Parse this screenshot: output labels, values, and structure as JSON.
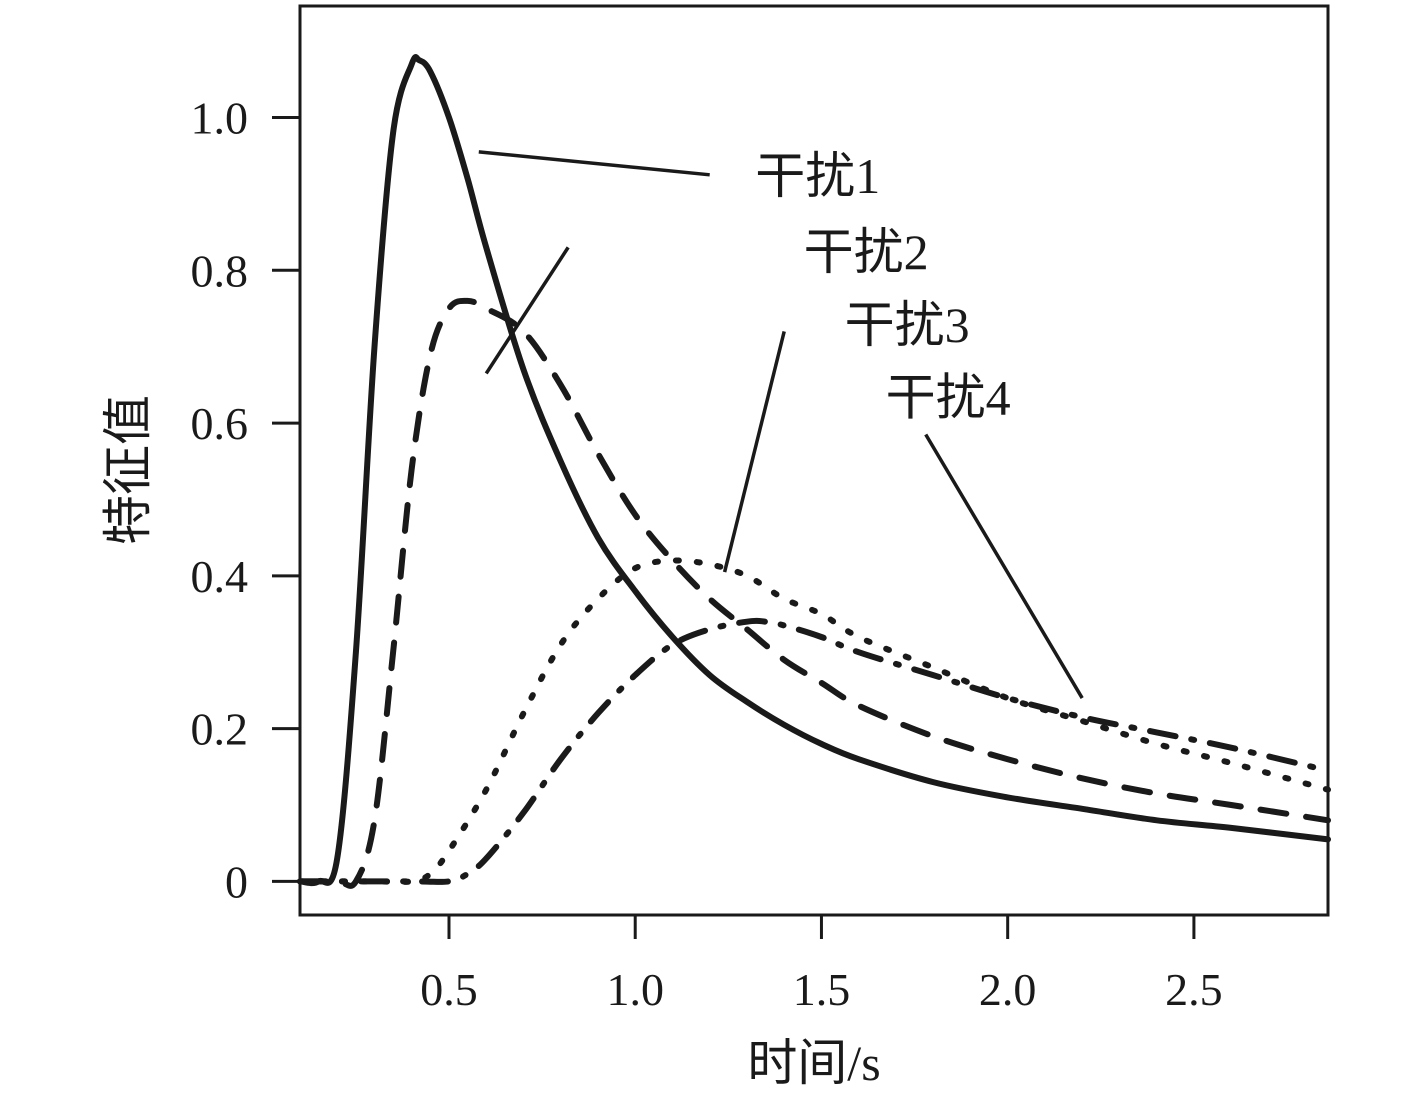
{
  "chart_data": {
    "type": "line",
    "xlabel": "时间/s",
    "ylabel": "特征值",
    "xlim": [
      0.1,
      2.86
    ],
    "ylim": [
      -0.044,
      1.146
    ],
    "xticks": [
      "0.5",
      "1.0",
      "1.5",
      "2.0",
      "2.5"
    ],
    "xtick_values": [
      0.5,
      1.0,
      1.5,
      2.0,
      2.5
    ],
    "yticks": [
      "0",
      "0.2",
      "0.4",
      "0.6",
      "0.8",
      "1.0"
    ],
    "ytick_values": [
      0,
      0.2,
      0.4,
      0.6,
      0.8,
      1.0
    ],
    "grid": false,
    "series": [
      {
        "name": "干扰1",
        "style": "solid",
        "x": [
          0.1,
          0.15,
          0.2,
          0.25,
          0.3,
          0.35,
          0.4,
          0.42,
          0.45,
          0.5,
          0.55,
          0.6,
          0.7,
          0.8,
          0.9,
          1.0,
          1.1,
          1.2,
          1.3,
          1.4,
          1.5,
          1.6,
          1.8,
          2.0,
          2.2,
          2.4,
          2.6,
          2.86
        ],
        "y": [
          0,
          0,
          0.03,
          0.3,
          0.7,
          0.98,
          1.07,
          1.075,
          1.06,
          1.0,
          0.92,
          0.83,
          0.67,
          0.55,
          0.45,
          0.38,
          0.32,
          0.27,
          0.235,
          0.205,
          0.18,
          0.16,
          0.13,
          0.11,
          0.095,
          0.08,
          0.07,
          0.055
        ]
      },
      {
        "name": "干扰2",
        "style": "dashed",
        "x": [
          0.1,
          0.2,
          0.25,
          0.3,
          0.35,
          0.4,
          0.45,
          0.5,
          0.55,
          0.6,
          0.7,
          0.8,
          0.9,
          1.0,
          1.1,
          1.2,
          1.3,
          1.4,
          1.5,
          1.6,
          1.8,
          2.0,
          2.2,
          2.4,
          2.6,
          2.86
        ],
        "y": [
          0,
          0,
          0,
          0.08,
          0.3,
          0.54,
          0.69,
          0.75,
          0.76,
          0.75,
          0.72,
          0.65,
          0.56,
          0.48,
          0.42,
          0.37,
          0.33,
          0.29,
          0.26,
          0.23,
          0.19,
          0.16,
          0.135,
          0.115,
          0.1,
          0.08
        ]
      },
      {
        "name": "干扰3",
        "style": "dotted",
        "x": [
          0.1,
          0.3,
          0.4,
          0.45,
          0.5,
          0.6,
          0.7,
          0.8,
          0.9,
          1.0,
          1.1,
          1.2,
          1.3,
          1.4,
          1.5,
          1.6,
          1.8,
          2.0,
          2.2,
          2.4,
          2.6,
          2.86
        ],
        "y": [
          0,
          0,
          0,
          0.01,
          0.04,
          0.12,
          0.22,
          0.31,
          0.37,
          0.41,
          0.42,
          0.415,
          0.4,
          0.37,
          0.35,
          0.32,
          0.28,
          0.24,
          0.21,
          0.18,
          0.155,
          0.12
        ]
      },
      {
        "name": "干扰4",
        "style": "dashdot",
        "x": [
          0.1,
          0.4,
          0.5,
          0.55,
          0.6,
          0.7,
          0.8,
          0.9,
          1.0,
          1.1,
          1.2,
          1.3,
          1.35,
          1.4,
          1.5,
          1.6,
          1.8,
          2.0,
          2.2,
          2.4,
          2.6,
          2.86
        ],
        "y": [
          0,
          0,
          0,
          0.01,
          0.03,
          0.09,
          0.16,
          0.22,
          0.27,
          0.31,
          0.33,
          0.34,
          0.34,
          0.335,
          0.32,
          0.3,
          0.27,
          0.24,
          0.215,
          0.195,
          0.175,
          0.145
        ]
      }
    ],
    "annotations": [
      {
        "text": "干扰1",
        "label_x": 1.49,
        "label_y": 0.925,
        "leader_from": [
          1.2,
          0.925
        ],
        "leader_to": [
          0.58,
          0.955
        ]
      },
      {
        "text": "干扰2",
        "label_x": 1.62,
        "label_y": 0.825,
        "leader_from": [
          0.82,
          0.83
        ],
        "leader_to": [
          0.6,
          0.665
        ]
      },
      {
        "text": "干扰3",
        "label_x": 1.73,
        "label_y": 0.73,
        "leader_from": [
          1.4,
          0.72
        ],
        "leader_to": [
          1.24,
          0.405
        ]
      },
      {
        "text": "干扰4",
        "label_x": 1.84,
        "label_y": 0.635,
        "leader_from": [
          1.78,
          0.585
        ],
        "leader_to": [
          2.2,
          0.24
        ]
      }
    ]
  }
}
